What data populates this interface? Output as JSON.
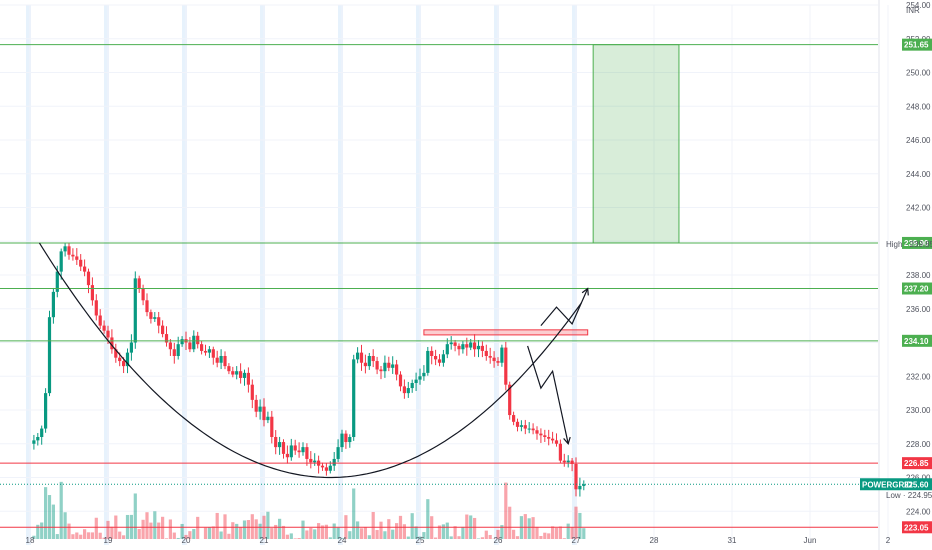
{
  "chart_data": {
    "type": "candlestick",
    "symbol": "POWERGRID",
    "currency": "INR",
    "last_price": "225.60",
    "high_label": "High",
    "high_value": "239.85",
    "low_label": "Low",
    "low_value": "224.95",
    "ylim": [
      222,
      254
    ],
    "y_ticks": [
      "224.00",
      "226.00",
      "228.00",
      "230.00",
      "232.00",
      "234.00",
      "236.00",
      "238.00",
      "240.00",
      "242.00",
      "244.00",
      "246.00",
      "248.00",
      "250.00",
      "252.00",
      "254.00"
    ],
    "x_labels": [
      {
        "label": "18",
        "day": 0
      },
      {
        "label": "19",
        "day": 1
      },
      {
        "label": "20",
        "day": 2
      },
      {
        "label": "21",
        "day": 3
      },
      {
        "label": "24",
        "day": 4
      },
      {
        "label": "25",
        "day": 5
      },
      {
        "label": "26",
        "day": 6
      },
      {
        "label": "27",
        "day": 7
      },
      {
        "label": "28",
        "day": 8
      },
      {
        "label": "31",
        "day": 9
      },
      {
        "label": "Jun",
        "day": 10
      },
      {
        "label": "2",
        "day": 11
      }
    ],
    "levels": [
      {
        "value": 251.65,
        "label": "251.65",
        "color": "#4caf50"
      },
      {
        "value": 239.9,
        "label": "239.90",
        "color": "#4caf50"
      },
      {
        "value": 237.2,
        "label": "237.20",
        "color": "#4caf50"
      },
      {
        "value": 234.1,
        "label": "234.10",
        "color": "#4caf50"
      },
      {
        "value": 226.85,
        "label": "226.85",
        "color": "#f23645"
      },
      {
        "value": 223.05,
        "label": "223.05",
        "color": "#f23645"
      }
    ],
    "target_zone": {
      "from_day": 7.22,
      "to_day": 8.32,
      "low": 239.9,
      "high": 251.65
    },
    "resistance_zone": {
      "from_day": 5.05,
      "to_day": 7.15,
      "low": 234.45,
      "high": 234.75
    },
    "arc": {
      "from_day": 0.12,
      "to_day": 7.1,
      "vertex_day": 3.85,
      "vertex_price": 226.0,
      "start_price": 239.9
    },
    "arrow_up": [
      [
        6.55,
        235.0
      ],
      [
        6.75,
        236.1
      ],
      [
        6.95,
        235.1
      ],
      [
        7.15,
        237.2
      ]
    ],
    "arrow_down": [
      [
        6.38,
        233.8
      ],
      [
        6.55,
        231.3
      ],
      [
        6.7,
        232.3
      ],
      [
        6.9,
        228.0
      ]
    ],
    "price_series": [
      [
        0,
        228.0
      ],
      [
        0.05,
        228.2
      ],
      [
        0.1,
        228.4
      ],
      [
        0.15,
        228.9
      ],
      [
        0.2,
        231.0
      ],
      [
        0.25,
        235.5
      ],
      [
        0.3,
        237.0
      ],
      [
        0.35,
        238.2
      ],
      [
        0.4,
        239.4
      ],
      [
        0.45,
        239.7
      ],
      [
        0.5,
        239.2
      ],
      [
        0.55,
        239.1
      ],
      [
        0.6,
        238.9
      ],
      [
        0.65,
        238.5
      ],
      [
        0.7,
        238.2
      ],
      [
        0.75,
        237.4
      ],
      [
        0.8,
        236.5
      ],
      [
        0.85,
        235.6
      ],
      [
        0.9,
        235.0
      ],
      [
        0.95,
        234.7
      ],
      [
        1.0,
        234.3
      ],
      [
        1.05,
        233.6
      ],
      [
        1.1,
        233.1
      ],
      [
        1.15,
        232.9
      ],
      [
        1.2,
        232.6
      ],
      [
        1.25,
        233.4
      ],
      [
        1.3,
        234.0
      ],
      [
        1.35,
        237.8
      ],
      [
        1.4,
        237.2
      ],
      [
        1.45,
        236.5
      ],
      [
        1.5,
        235.8
      ],
      [
        1.55,
        235.4
      ],
      [
        1.6,
        235.5
      ],
      [
        1.65,
        235.0
      ],
      [
        1.7,
        234.5
      ],
      [
        1.75,
        234.0
      ],
      [
        1.8,
        233.6
      ],
      [
        1.85,
        233.2
      ],
      [
        1.9,
        233.9
      ],
      [
        1.95,
        234.2
      ],
      [
        2.0,
        234.0
      ],
      [
        2.05,
        233.6
      ],
      [
        2.1,
        234.4
      ],
      [
        2.15,
        233.9
      ],
      [
        2.2,
        233.5
      ],
      [
        2.25,
        233.4
      ],
      [
        2.3,
        233.6
      ],
      [
        2.35,
        233.1
      ],
      [
        2.4,
        232.8
      ],
      [
        2.45,
        233.2
      ],
      [
        2.5,
        232.6
      ],
      [
        2.55,
        232.3
      ],
      [
        2.6,
        232.1
      ],
      [
        2.65,
        232.3
      ],
      [
        2.7,
        231.9
      ],
      [
        2.75,
        232.2
      ],
      [
        2.8,
        231.5
      ],
      [
        2.85,
        230.6
      ],
      [
        2.9,
        229.9
      ],
      [
        2.95,
        230.2
      ],
      [
        3.0,
        229.4
      ],
      [
        3.05,
        229.6
      ],
      [
        3.1,
        228.4
      ],
      [
        3.15,
        227.8
      ],
      [
        3.2,
        228.1
      ],
      [
        3.25,
        227.4
      ],
      [
        3.3,
        227.2
      ],
      [
        3.35,
        227.9
      ],
      [
        3.4,
        227.6
      ],
      [
        3.45,
        227.5
      ],
      [
        3.5,
        227.8
      ],
      [
        3.55,
        227.1
      ],
      [
        3.6,
        226.9
      ],
      [
        3.65,
        227.0
      ],
      [
        3.7,
        226.7
      ],
      [
        3.75,
        226.6
      ],
      [
        3.8,
        226.4
      ],
      [
        3.85,
        226.7
      ],
      [
        3.9,
        227.1
      ],
      [
        3.95,
        227.8
      ],
      [
        4.0,
        228.6
      ],
      [
        4.05,
        228.1
      ],
      [
        4.1,
        228.4
      ],
      [
        4.15,
        233.0
      ],
      [
        4.2,
        233.4
      ],
      [
        4.25,
        232.8
      ],
      [
        4.3,
        232.6
      ],
      [
        4.35,
        233.2
      ],
      [
        4.4,
        232.9
      ],
      [
        4.45,
        232.4
      ],
      [
        4.5,
        232.3
      ],
      [
        4.55,
        232.8
      ],
      [
        4.6,
        232.5
      ],
      [
        4.65,
        232.7
      ],
      [
        4.7,
        232.1
      ],
      [
        4.75,
        231.4
      ],
      [
        4.8,
        231.0
      ],
      [
        4.85,
        231.3
      ],
      [
        4.9,
        231.6
      ],
      [
        4.95,
        231.8
      ],
      [
        5.0,
        232.0
      ],
      [
        5.05,
        232.2
      ],
      [
        5.1,
        233.5
      ],
      [
        5.15,
        233.2
      ],
      [
        5.2,
        233.0
      ],
      [
        5.25,
        232.8
      ],
      [
        5.3,
        233.3
      ],
      [
        5.35,
        233.9
      ],
      [
        5.4,
        234.0
      ],
      [
        5.45,
        233.8
      ],
      [
        5.5,
        233.6
      ],
      [
        5.55,
        233.9
      ],
      [
        5.6,
        233.7
      ],
      [
        5.65,
        234.0
      ],
      [
        5.7,
        233.6
      ],
      [
        5.75,
        233.8
      ],
      [
        5.8,
        233.5
      ],
      [
        5.85,
        233.2
      ],
      [
        5.9,
        233.1
      ],
      [
        5.95,
        232.9
      ],
      [
        6.0,
        232.8
      ],
      [
        6.05,
        233.7
      ],
      [
        6.1,
        231.5
      ],
      [
        6.15,
        229.7
      ],
      [
        6.2,
        229.3
      ],
      [
        6.25,
        229.0
      ],
      [
        6.3,
        229.1
      ],
      [
        6.35,
        228.9
      ],
      [
        6.4,
        228.9
      ],
      [
        6.45,
        228.8
      ],
      [
        6.5,
        228.6
      ],
      [
        6.55,
        228.5
      ],
      [
        6.6,
        228.4
      ],
      [
        6.65,
        228.3
      ],
      [
        6.7,
        228.2
      ],
      [
        6.75,
        228.0
      ],
      [
        6.8,
        227.0
      ],
      [
        6.85,
        226.9
      ],
      [
        6.9,
        227.0
      ],
      [
        6.95,
        226.8
      ],
      [
        7.0,
        225.3
      ],
      [
        7.05,
        225.5
      ],
      [
        7.1,
        225.6
      ]
    ]
  }
}
